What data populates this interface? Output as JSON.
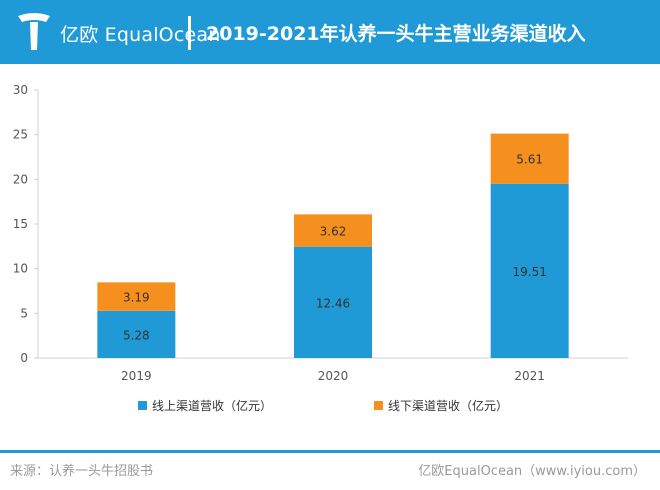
{
  "header": {
    "brand": "亿欧 EqualOcean",
    "title": "2019-2021年认养一头牛主营业务渠道收入"
  },
  "footer": {
    "source": "来源：认养一头牛招股书",
    "brand": "亿欧EqualOcean（www.iyiou.com）"
  },
  "colors": {
    "header_bg": "#1f9ad6",
    "online": "#1f9ad6",
    "offline": "#f5901e"
  },
  "chart_data": {
    "type": "bar",
    "stacked": true,
    "title": "2019-2021年认养一头牛主营业务渠道收入",
    "xlabel": "",
    "ylabel": "",
    "categories": [
      "2019",
      "2020",
      "2021"
    ],
    "series": [
      {
        "name": "线上渠道营收（亿元）",
        "values": [
          5.28,
          12.46,
          19.51
        ],
        "color": "#1f9ad6"
      },
      {
        "name": "线下渠道营收（亿元）",
        "values": [
          3.19,
          3.62,
          5.61
        ],
        "color": "#f5901e"
      }
    ],
    "ylim": [
      0,
      30
    ],
    "yticks": [
      0,
      5,
      10,
      15,
      20,
      25,
      30
    ],
    "grid": false,
    "legend": "bottom"
  }
}
